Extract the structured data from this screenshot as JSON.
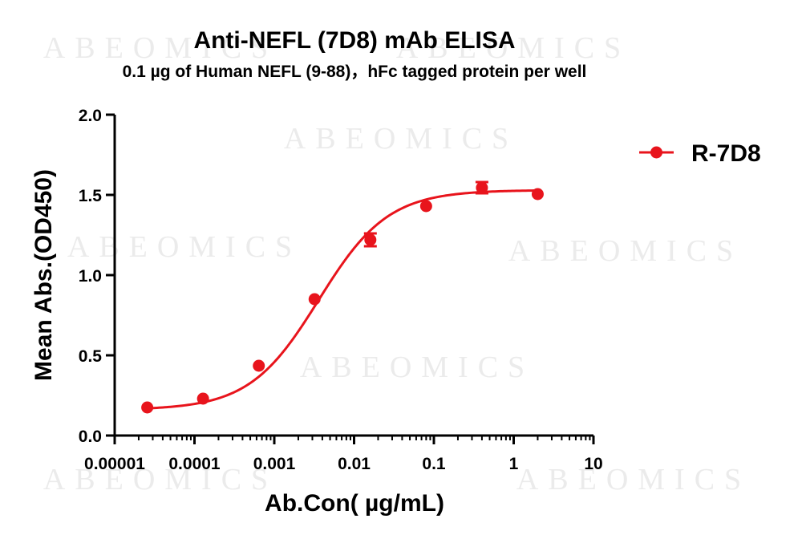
{
  "watermark_text": "ABEOMICS",
  "chart_data": {
    "type": "scatter",
    "title": "Anti-NEFL (7D8) mAb ELISA",
    "subtitle": "0.1 µg of Human NEFL (9-88)，hFc tagged protein per well",
    "xlabel": "Ab.Con( µg/mL)",
    "ylabel": "Mean Abs.(OD450)",
    "x_scale": "log",
    "xlim": [
      1e-05,
      10
    ],
    "x_ticks": [
      1e-05,
      0.0001,
      0.001,
      0.01,
      0.1,
      1,
      10
    ],
    "x_tick_labels": [
      "0.00001",
      "0.0001",
      "0.001",
      "0.01",
      "0.1",
      "1",
      "10"
    ],
    "ylim": [
      0,
      2.0
    ],
    "y_ticks": [
      0,
      0.5,
      1.0,
      1.5,
      2.0
    ],
    "y_tick_labels": [
      "0.0",
      "0.5",
      "1.0",
      "1.5",
      "2.0"
    ],
    "grid": false,
    "legend_position": "top-right",
    "series": [
      {
        "name": "R-7D8",
        "color": "#e8141c",
        "x": [
          2.56e-05,
          0.000128,
          0.00064,
          0.0032,
          0.016,
          0.08,
          0.4,
          2.0
        ],
        "y": [
          0.175,
          0.23,
          0.435,
          0.85,
          1.22,
          1.43,
          1.545,
          1.505
        ],
        "error": [
          0.01,
          0.01,
          0.01,
          0.01,
          0.04,
          0.01,
          0.035,
          0.01
        ],
        "fit": {
          "model": "4PL",
          "bottom": 0.16,
          "top": 1.53,
          "ec50": 0.0036,
          "hill": 1.0
        }
      }
    ]
  }
}
